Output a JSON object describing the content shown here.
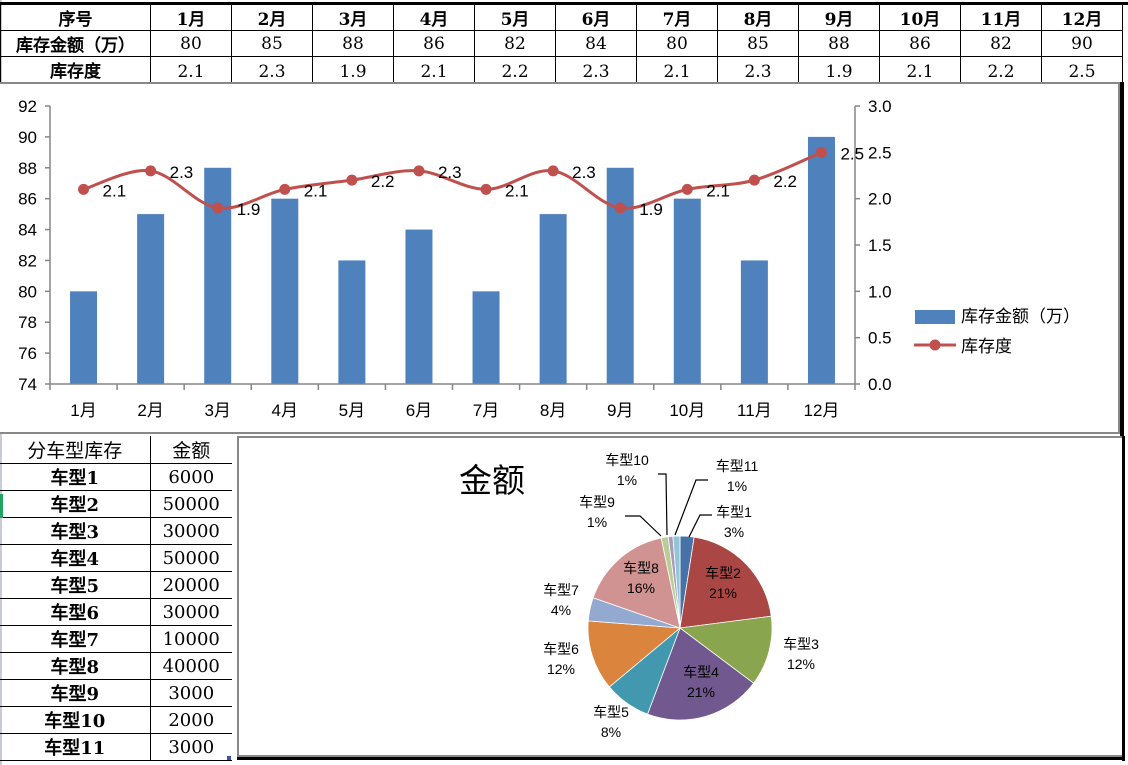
{
  "summary_table": {
    "header_label": "序号",
    "row_amount_label": "库存金额（万）",
    "row_turnover_label": "库存度",
    "months": [
      "1月",
      "2月",
      "3月",
      "4月",
      "5月",
      "6月",
      "7月",
      "8月",
      "9月",
      "10月",
      "11月",
      "12月"
    ],
    "amounts": [
      "80",
      "85",
      "88",
      "86",
      "82",
      "84",
      "80",
      "85",
      "88",
      "86",
      "82",
      "90"
    ],
    "turnover": [
      "2.1",
      "2.3",
      "1.9",
      "2.1",
      "2.2",
      "2.3",
      "2.1",
      "2.3",
      "1.9",
      "2.1",
      "2.2",
      "2.5"
    ]
  },
  "model_table": {
    "header_model": "分车型库存",
    "header_amount": "金额",
    "rows": [
      {
        "model": "车型1",
        "amount": "6000"
      },
      {
        "model": "车型2",
        "amount": "50000"
      },
      {
        "model": "车型3",
        "amount": "30000"
      },
      {
        "model": "车型4",
        "amount": "50000"
      },
      {
        "model": "车型5",
        "amount": "20000"
      },
      {
        "model": "车型6",
        "amount": "30000"
      },
      {
        "model": "车型7",
        "amount": "10000"
      },
      {
        "model": "车型8",
        "amount": "40000"
      },
      {
        "model": "车型9",
        "amount": "3000"
      },
      {
        "model": "车型10",
        "amount": "2000"
      },
      {
        "model": "车型11",
        "amount": "3000"
      }
    ]
  },
  "colors": {
    "bar": "#4f81bd",
    "line": "#c0504d",
    "axis": "#868686",
    "pie": [
      "#4672a8",
      "#aa4644",
      "#89a54e",
      "#71588f",
      "#4198af",
      "#db843d",
      "#93a9cf",
      "#d19392",
      "#b9cd96",
      "#a99bbd",
      "#92c5d6"
    ]
  },
  "chart_data": [
    {
      "type": "bar+line",
      "title": "",
      "categories": [
        "1月",
        "2月",
        "3月",
        "4月",
        "5月",
        "6月",
        "7月",
        "8月",
        "9月",
        "10月",
        "11月",
        "12月"
      ],
      "series": [
        {
          "name": "库存金额（万）",
          "type": "bar",
          "axis": "left",
          "values": [
            80,
            85,
            88,
            86,
            82,
            84,
            80,
            85,
            88,
            86,
            82,
            90
          ]
        },
        {
          "name": "库存度",
          "type": "line",
          "axis": "right",
          "smooth": true,
          "markers": true,
          "data_labels": true,
          "values": [
            2.1,
            2.3,
            1.9,
            2.1,
            2.2,
            2.3,
            2.1,
            2.3,
            1.9,
            2.1,
            2.2,
            2.5
          ]
        }
      ],
      "y_left": {
        "min": 74,
        "max": 92,
        "ticks": [
          "74",
          "76",
          "78",
          "80",
          "82",
          "84",
          "86",
          "88",
          "90",
          "92"
        ]
      },
      "y_right": {
        "min": 0,
        "max": 3.0,
        "ticks": [
          "0.0",
          "0.5",
          "1.0",
          "1.5",
          "2.0",
          "2.5",
          "3.0"
        ]
      },
      "grid": false,
      "legend": {
        "position": "right",
        "entries": [
          "库存金额（万）",
          "库存度"
        ]
      }
    },
    {
      "type": "pie",
      "title": "金额",
      "categories": [
        "车型1",
        "车型2",
        "车型3",
        "车型4",
        "车型5",
        "车型6",
        "车型7",
        "车型8",
        "车型9",
        "车型10",
        "车型11"
      ],
      "values": [
        6000,
        50000,
        30000,
        50000,
        20000,
        30000,
        10000,
        40000,
        3000,
        2000,
        3000
      ],
      "percent_labels": [
        "3%",
        "21%",
        "12%",
        "21%",
        "8%",
        "12%",
        "4%",
        "16%",
        "1%",
        "1%",
        "1%"
      ],
      "legend": {
        "position": "none"
      }
    }
  ]
}
